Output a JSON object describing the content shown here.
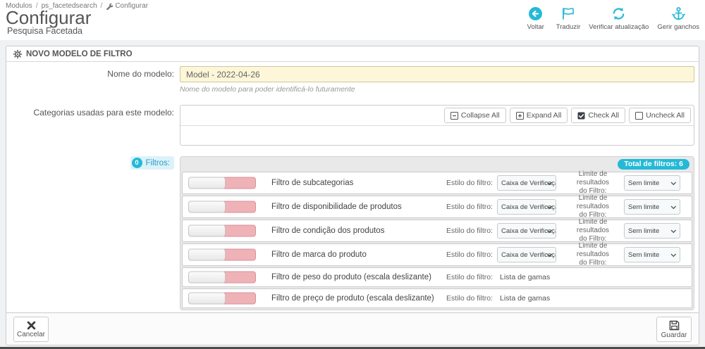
{
  "breadcrumb": {
    "item1": "Modulos",
    "item2": "ps_facetedsearch",
    "item3": "Configurar",
    "separator": "/"
  },
  "header": {
    "title": "Configurar",
    "subtitle": "Pesquisa Facetada",
    "toolbar": [
      {
        "icon": "back-circle-icon",
        "label": "Voltar"
      },
      {
        "icon": "flag-icon",
        "label": "Traduzir"
      },
      {
        "icon": "refresh-icon",
        "label": "Verificar atualização"
      },
      {
        "icon": "anchor-icon",
        "label": "Gerir ganchos"
      }
    ]
  },
  "panel": {
    "header": "NOVO MODELO DE FILTRO"
  },
  "form": {
    "name": {
      "label": "Nome do modelo:",
      "value": "Model - 2022-04-26",
      "help": "Nome do modelo para poder identificá-lo futuramente"
    },
    "categories": {
      "label": "Categorias usadas para este modelo:",
      "buttons": [
        {
          "icon": "collapse-icon",
          "label": "Collapse All"
        },
        {
          "icon": "expand-icon",
          "label": "Expand All"
        },
        {
          "icon": "checked-box-icon",
          "label": "Check All"
        },
        {
          "icon": "unchecked-box-icon",
          "label": "Uncheck All"
        }
      ]
    },
    "filters_badge": "0",
    "filters_label": "Filtros:"
  },
  "filters": {
    "total_badge": "Total de filtros: 6",
    "style_label": "Estilo do filtro:",
    "limit_label_line1": "Limite de resultados",
    "limit_label_line2": "do Filtro:",
    "rows": [
      {
        "label": "Filtro de subcategorias",
        "style_control": "select",
        "style_value": "Caixa de Verificaçã",
        "limit_value": "Sem limite"
      },
      {
        "label": "Filtro de disponibilidade de produtos",
        "style_control": "select",
        "style_value": "Caixa de Verificaçã",
        "limit_value": "Sem limite"
      },
      {
        "label": "Filtro de condição dos produtos",
        "style_control": "select",
        "style_value": "Caixa de Verificaçã",
        "limit_value": "Sem limite"
      },
      {
        "label": "Filtro de marca do produto",
        "style_control": "select",
        "style_value": "Caixa de Verificaçã",
        "limit_value": "Sem limite"
      },
      {
        "label": "Filtro de peso do produto (escala deslizante)",
        "style_control": "text",
        "style_value": "Lista de gamas"
      },
      {
        "label": "Filtro de preço de produto (escala deslizante)",
        "style_control": "text",
        "style_value": "Lista de gamas"
      }
    ]
  },
  "footer": {
    "cancel_label": "Cancelar",
    "save_label": "Guardar"
  },
  "colors": {
    "accent": "#25b9d7",
    "toggle_pink": "#efb2b7",
    "input_highlight": "#fdf6d8"
  }
}
